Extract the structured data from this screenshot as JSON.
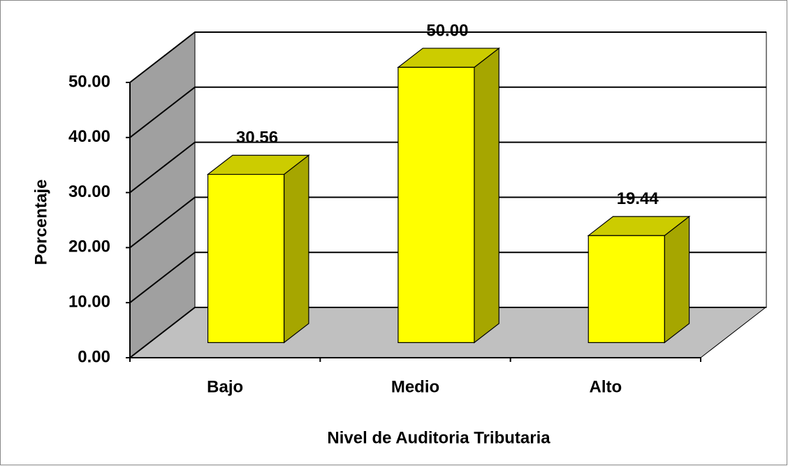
{
  "chart_data": {
    "type": "bar3d",
    "x_label": "Nivel de Auditoria Tributaria",
    "y_label": "Porcentaje",
    "categories": [
      "Bajo",
      "Medio",
      "Alto"
    ],
    "values": [
      30.56,
      50,
      19.44
    ],
    "value_labels": [
      "30.56",
      "50.00",
      "19.44"
    ],
    "color": "#ffff00",
    "ylim": [
      0,
      50
    ],
    "yticks": [
      {
        "value": 0,
        "label": "0.00"
      },
      {
        "value": 10,
        "label": "10.00"
      },
      {
        "value": 20,
        "label": "20.00"
      },
      {
        "value": 30,
        "label": "30.00"
      },
      {
        "value": 40,
        "label": "40.00"
      },
      {
        "value": 50,
        "label": "50.00"
      }
    ],
    "grid": true
  }
}
